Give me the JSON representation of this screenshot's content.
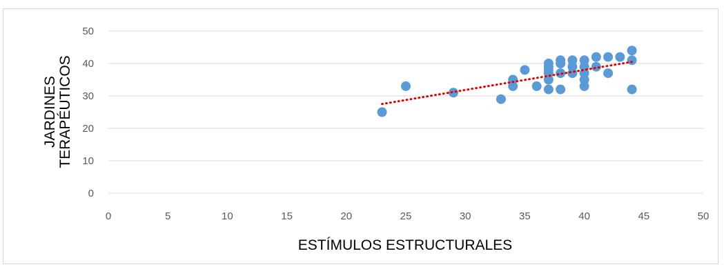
{
  "chart_data": {
    "type": "scatter",
    "title": "",
    "xlabel": "ESTÍMULOS ESTRUCTURALES",
    "ylabel_lines": [
      "JARDINES",
      "TERAPÉUTICOS"
    ],
    "xlim": [
      0,
      50
    ],
    "ylim": [
      0,
      50
    ],
    "x_ticks": [
      0,
      5,
      10,
      15,
      20,
      25,
      30,
      35,
      40,
      45,
      50
    ],
    "y_ticks": [
      0,
      10,
      20,
      30,
      40,
      50
    ],
    "grid": "horizontal",
    "legend": "none",
    "point_color": "#5b9bd5",
    "trendline": {
      "style": "dotted",
      "color": "#e00000",
      "x": [
        23,
        44
      ],
      "y": [
        27.5,
        40.5
      ]
    },
    "points": [
      {
        "x": 23,
        "y": 25
      },
      {
        "x": 25,
        "y": 33
      },
      {
        "x": 29,
        "y": 31
      },
      {
        "x": 33,
        "y": 29
      },
      {
        "x": 34,
        "y": 35
      },
      {
        "x": 34,
        "y": 33
      },
      {
        "x": 35,
        "y": 38
      },
      {
        "x": 36,
        "y": 33
      },
      {
        "x": 37,
        "y": 40
      },
      {
        "x": 37,
        "y": 39
      },
      {
        "x": 37,
        "y": 38
      },
      {
        "x": 37,
        "y": 37
      },
      {
        "x": 37,
        "y": 35
      },
      {
        "x": 37,
        "y": 32
      },
      {
        "x": 38,
        "y": 41
      },
      {
        "x": 38,
        "y": 40
      },
      {
        "x": 38,
        "y": 37
      },
      {
        "x": 38,
        "y": 32
      },
      {
        "x": 39,
        "y": 41
      },
      {
        "x": 39,
        "y": 39
      },
      {
        "x": 39,
        "y": 37
      },
      {
        "x": 40,
        "y": 41
      },
      {
        "x": 40,
        "y": 39
      },
      {
        "x": 40,
        "y": 37
      },
      {
        "x": 40,
        "y": 35
      },
      {
        "x": 40,
        "y": 33
      },
      {
        "x": 41,
        "y": 42
      },
      {
        "x": 41,
        "y": 39
      },
      {
        "x": 42,
        "y": 42
      },
      {
        "x": 42,
        "y": 37
      },
      {
        "x": 43,
        "y": 42
      },
      {
        "x": 44,
        "y": 44
      },
      {
        "x": 44,
        "y": 41
      },
      {
        "x": 44,
        "y": 32
      }
    ]
  }
}
